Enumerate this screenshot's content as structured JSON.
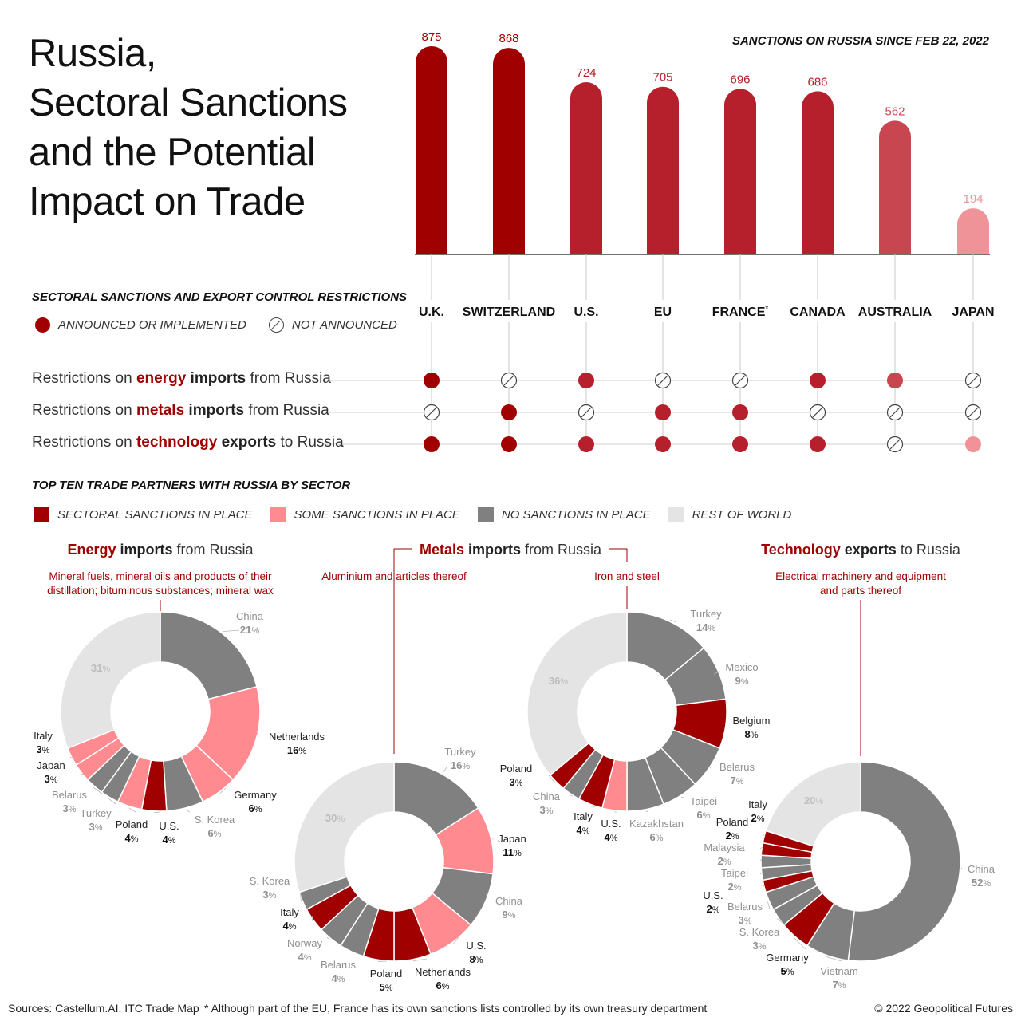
{
  "title_lines": [
    "Russia,",
    "Sectoral Sanctions",
    "and the Potential",
    "Impact on Trade"
  ],
  "chart_data": [
    {
      "type": "bar",
      "title": "SANCTIONS ON RUSSIA SINCE FEB 22, 2022",
      "categories": [
        "U.K.",
        "SWITZERLAND",
        "U.S.",
        "EU",
        "FRANCE",
        "CANADA",
        "AUSTRALIA",
        "JAPAN"
      ],
      "category_marks": [
        "",
        "",
        "",
        "",
        "*",
        "",
        "",
        ""
      ],
      "values": [
        875,
        868,
        724,
        705,
        696,
        686,
        562,
        194
      ],
      "colors": [
        "#a10000",
        "#a10000",
        "#b5202c",
        "#b5202c",
        "#b5202c",
        "#b5202c",
        "#c7464f",
        "#f09399"
      ],
      "ylim": [
        0,
        900
      ]
    },
    {
      "type": "pie",
      "title_parts": [
        "Energy",
        " imports",
        " from Russia"
      ],
      "subtitle_lines": [
        "Mineral fuels, mineral oils and products of their",
        "distillation; bituminous substances; mineral wax"
      ],
      "slices": [
        {
          "name": "China",
          "value": 21,
          "label": "21",
          "category": "none"
        },
        {
          "name": "Netherlands",
          "value": 16,
          "label": "16",
          "category": "some"
        },
        {
          "name": "Germany",
          "value": 6,
          "label": "6",
          "category": "some"
        },
        {
          "name": "S. Korea",
          "value": 6,
          "label": "6",
          "category": "none"
        },
        {
          "name": "U.S.",
          "value": 4,
          "label": "4",
          "category": "sectoral"
        },
        {
          "name": "Poland",
          "value": 4,
          "label": "4",
          "category": "some"
        },
        {
          "name": "Turkey",
          "value": 3,
          "label": "3",
          "category": "none"
        },
        {
          "name": "Belarus",
          "value": 3,
          "label": "3",
          "category": "none"
        },
        {
          "name": "Japan",
          "value": 3,
          "label": "3",
          "category": "some"
        },
        {
          "name": "Italy",
          "value": 3,
          "label": "3",
          "category": "some"
        },
        {
          "name": "",
          "value": 31,
          "label": "31",
          "category": "rest"
        }
      ]
    },
    {
      "type": "pie",
      "title_parts": [
        "Metals",
        " imports",
        " from Russia"
      ],
      "subtitle_lines": [
        "Aluminium and articles thereof"
      ],
      "slices": [
        {
          "name": "Turkey",
          "value": 16,
          "label": "16",
          "category": "none"
        },
        {
          "name": "Japan",
          "value": 11,
          "label": "11",
          "category": "some"
        },
        {
          "name": "China",
          "value": 9,
          "label": "9",
          "category": "none"
        },
        {
          "name": "U.S.",
          "value": 8,
          "label": "8",
          "category": "some"
        },
        {
          "name": "Netherlands",
          "value": 6,
          "label": "6",
          "category": "sectoral"
        },
        {
          "name": "Poland",
          "value": 5,
          "label": "5",
          "category": "sectoral"
        },
        {
          "name": "Belarus",
          "value": 4,
          "label": "4",
          "category": "none"
        },
        {
          "name": "Norway",
          "value": 4,
          "label": "4",
          "category": "none"
        },
        {
          "name": "Italy",
          "value": 4,
          "label": "4",
          "category": "sectoral"
        },
        {
          "name": "S. Korea",
          "value": 3,
          "label": "3",
          "category": "none"
        },
        {
          "name": "",
          "value": 30,
          "label": "30",
          "category": "rest"
        }
      ]
    },
    {
      "type": "pie",
      "title_parts": [],
      "subtitle_lines": [
        "Iron and steel"
      ],
      "slices": [
        {
          "name": "Turkey",
          "value": 14,
          "label": "14",
          "category": "none"
        },
        {
          "name": "Mexico",
          "value": 9,
          "label": "9",
          "category": "none"
        },
        {
          "name": "Belgium",
          "value": 8,
          "label": "8",
          "category": "sectoral"
        },
        {
          "name": "Belarus",
          "value": 7,
          "label": "7",
          "category": "none"
        },
        {
          "name": "Taipei",
          "value": 6,
          "label": "6",
          "category": "none"
        },
        {
          "name": "Kazakhstan",
          "value": 6,
          "label": "6",
          "category": "none"
        },
        {
          "name": "U.S.",
          "value": 4,
          "label": "4",
          "category": "some"
        },
        {
          "name": "Italy",
          "value": 4,
          "label": "4",
          "category": "sectoral"
        },
        {
          "name": "China",
          "value": 3,
          "label": "3",
          "category": "none"
        },
        {
          "name": "Poland",
          "value": 3,
          "label": "3",
          "category": "sectoral"
        },
        {
          "name": "",
          "value": 36,
          "label": "36",
          "category": "rest"
        }
      ]
    },
    {
      "type": "pie",
      "title_parts": [
        "Technology",
        " exports",
        " to Russia"
      ],
      "subtitle_lines": [
        "Electrical machinery and equipment",
        "and parts thereof"
      ],
      "slices": [
        {
          "name": "China",
          "value": 52,
          "label": "52",
          "category": "none"
        },
        {
          "name": "Vietnam",
          "value": 7,
          "label": "7",
          "category": "none"
        },
        {
          "name": "Germany",
          "value": 5,
          "label": "5",
          "category": "sectoral"
        },
        {
          "name": "S. Korea",
          "value": 3,
          "label": "3",
          "category": "none"
        },
        {
          "name": "Belarus",
          "value": 3,
          "label": "3",
          "category": "none"
        },
        {
          "name": "U.S.",
          "value": 2,
          "label": "2",
          "category": "sectoral"
        },
        {
          "name": "Taipei",
          "value": 2,
          "label": "2",
          "category": "none"
        },
        {
          "name": "Malaysia",
          "value": 2,
          "label": "2",
          "category": "none"
        },
        {
          "name": "Poland",
          "value": 2,
          "label": "2",
          "category": "sectoral"
        },
        {
          "name": "Italy",
          "value": 2,
          "label": "2",
          "category": "sectoral"
        },
        {
          "name": "",
          "value": 20,
          "label": "20",
          "category": "rest"
        }
      ]
    }
  ],
  "restrictions": {
    "heading": "SECTORAL SANCTIONS AND EXPORT CONTROL RESTRICTIONS",
    "legend": {
      "announced": "ANNOUNCED OR IMPLEMENTED",
      "not_announced": "NOT ANNOUNCED"
    },
    "rows": [
      {
        "pre": "Restrictions on ",
        "hl": "energy",
        "mid": " imports",
        "post": " from Russia",
        "status": [
          "y",
          "n",
          "y",
          "n",
          "n",
          "y",
          "y",
          "n"
        ]
      },
      {
        "pre": "Restrictions on ",
        "hl": "metals",
        "mid": " imports",
        "post": " from Russia",
        "status": [
          "n",
          "y",
          "n",
          "y",
          "y",
          "n",
          "n",
          "n"
        ]
      },
      {
        "pre": "Restrictions on ",
        "hl": "technology",
        "mid": " exports",
        "post": " to Russia",
        "status": [
          "y",
          "y",
          "y",
          "y",
          "y",
          "y",
          "n",
          "y"
        ]
      }
    ]
  },
  "trade": {
    "heading": "TOP TEN TRADE PARTNERS WITH RUSSIA BY SECTOR",
    "legend": [
      "SECTORAL SANCTIONS IN PLACE",
      "SOME SANCTIONS IN PLACE",
      "NO SANCTIONS IN PLACE",
      "REST OF WORLD"
    ]
  },
  "colors": {
    "sectoral": "#a10000",
    "some": "#ff8a8f",
    "none": "#808080",
    "rest": "#e4e4e4",
    "accent": "#a10000"
  },
  "footer": {
    "sources": "Sources: Castellum.AI, ITC Trade Map",
    "note": "* Although part of the EU, France has its own sanctions lists controlled by its own treasury department",
    "copyright": "© 2022 Geopolitical Futures"
  }
}
